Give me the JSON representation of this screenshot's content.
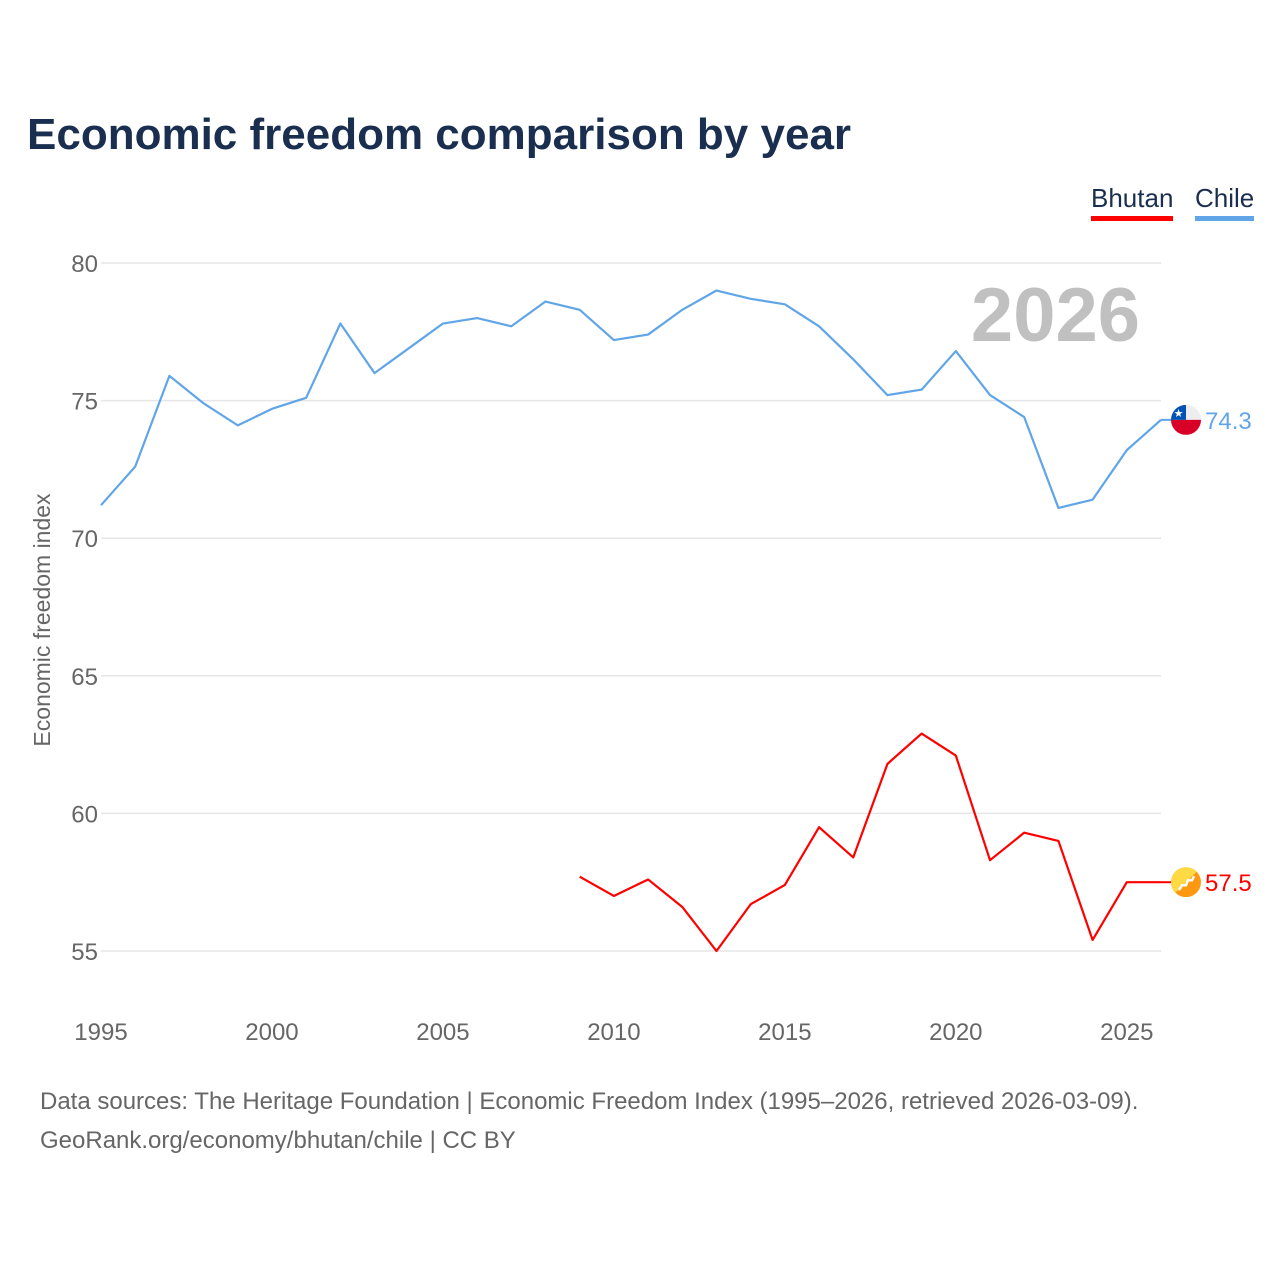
{
  "chart_data": {
    "type": "line",
    "title": "Economic freedom comparison by year",
    "ylabel": "Economic freedom index",
    "xlabel": "",
    "ylim": [
      53,
      81.5
    ],
    "xlim": [
      1995,
      2026
    ],
    "yticks": [
      55,
      60,
      65,
      70,
      75,
      80
    ],
    "xticks": [
      1995,
      2000,
      2005,
      2010,
      2015,
      2020,
      2025
    ],
    "grid": true,
    "legend_position": "top-right",
    "year_watermark": "2026",
    "series": [
      {
        "name": "Bhutan",
        "color": "#ff0000",
        "end_label": "57.5",
        "icon": "bhutan-flag-icon",
        "x": [
          2009,
          2010,
          2011,
          2012,
          2013,
          2014,
          2015,
          2016,
          2017,
          2018,
          2019,
          2020,
          2021,
          2022,
          2023,
          2024,
          2025,
          2026
        ],
        "values": [
          57.7,
          57.0,
          57.6,
          56.6,
          55.0,
          56.7,
          57.4,
          59.5,
          58.4,
          61.8,
          62.9,
          62.1,
          58.3,
          59.3,
          59.0,
          55.4,
          57.5,
          57.5
        ]
      },
      {
        "name": "Chile",
        "color": "#60a5e8",
        "end_label": "74.3",
        "icon": "chile-flag-icon",
        "x": [
          1995,
          1996,
          1997,
          1998,
          1999,
          2000,
          2001,
          2002,
          2003,
          2004,
          2005,
          2006,
          2007,
          2008,
          2009,
          2010,
          2011,
          2012,
          2013,
          2014,
          2015,
          2016,
          2017,
          2018,
          2019,
          2020,
          2021,
          2022,
          2023,
          2024,
          2025,
          2026
        ],
        "values": [
          71.2,
          72.6,
          75.9,
          74.9,
          74.1,
          74.7,
          75.1,
          77.8,
          76.0,
          76.9,
          77.8,
          78.0,
          77.7,
          78.6,
          78.3,
          77.2,
          77.4,
          78.3,
          79.0,
          78.7,
          78.5,
          77.7,
          76.5,
          75.2,
          75.4,
          76.8,
          75.2,
          74.4,
          71.1,
          71.4,
          73.2,
          74.3
        ]
      }
    ]
  },
  "footer": {
    "line1": "Data sources: The Heritage Foundation | Economic Freedom Index (1995–2026, retrieved 2026-03-09).",
    "line2": "GeoRank.org/economy/bhutan/chile | CC BY"
  }
}
